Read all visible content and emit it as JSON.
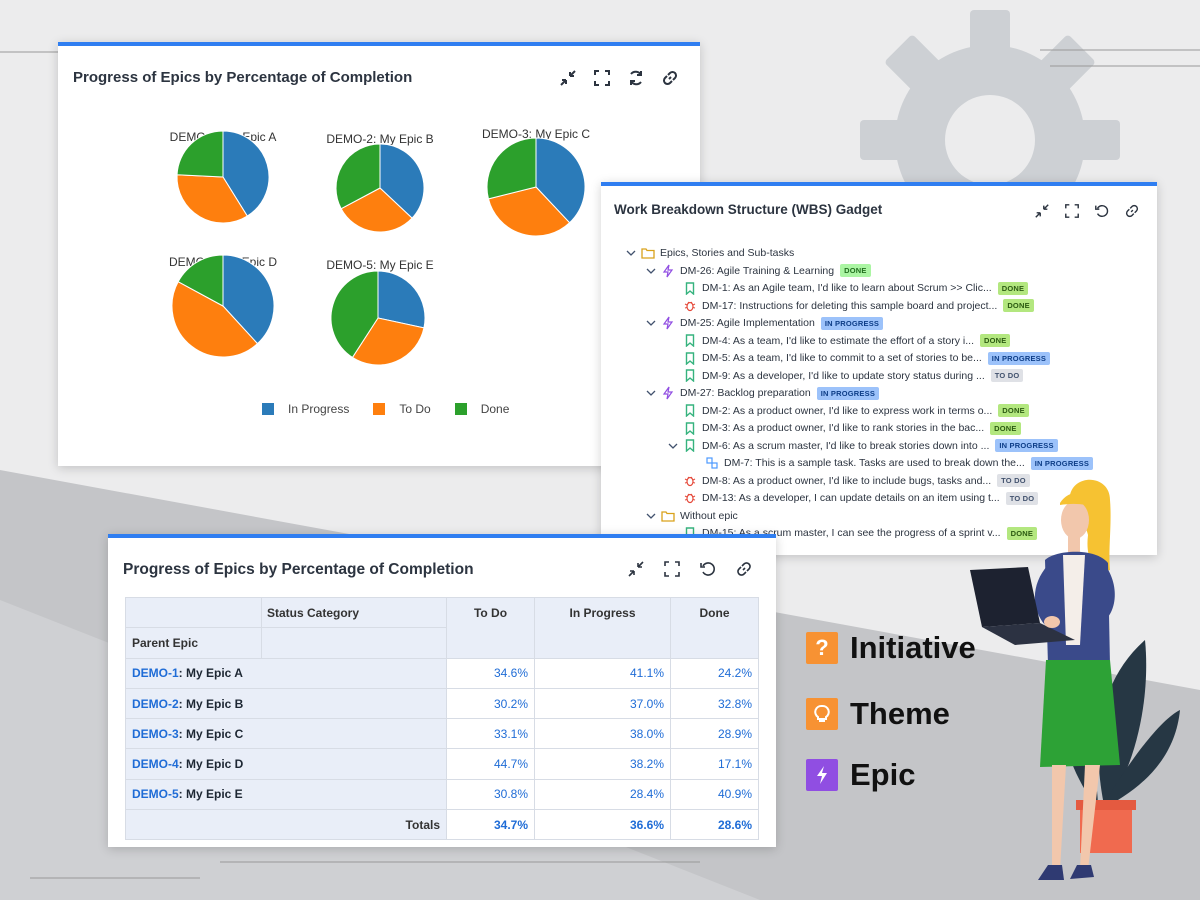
{
  "colors": {
    "in_progress": "#2b7bb9",
    "to_do": "#fe7f0e",
    "done": "#2ca02c",
    "accent": "#2f7ef1",
    "initiative": "#f79233",
    "theme": "#f79233",
    "epic": "#904ee2"
  },
  "pie_panel": {
    "title": "Progress of Epics by Percentage of Completion",
    "toolbar": [
      "minimize-icon",
      "fullscreen-icon",
      "refresh-icon",
      "link-icon"
    ],
    "legend": [
      "In Progress",
      "To Do",
      "Done"
    ]
  },
  "chart_data": {
    "type": "pie",
    "pies": [
      {
        "label": "DEMO-1: My Epic A",
        "in_progress": 41.1,
        "to_do": 34.6,
        "done": 24.2
      },
      {
        "label": "DEMO-2: My Epic B",
        "in_progress": 37.0,
        "to_do": 30.2,
        "done": 32.8
      },
      {
        "label": "DEMO-3: My Epic C",
        "in_progress": 38.0,
        "to_do": 33.1,
        "done": 28.9
      },
      {
        "label": "DEMO-4: My Epic D",
        "in_progress": 38.2,
        "to_do": 44.7,
        "done": 17.1
      },
      {
        "label": "DEMO-5: My Epic E",
        "in_progress": 28.4,
        "to_do": 30.8,
        "done": 40.9
      }
    ],
    "legend": [
      "In Progress",
      "To Do",
      "Done"
    ],
    "legend_position": "bottom"
  },
  "wbs": {
    "title": "Work Breakdown Structure (WBS) Gadget",
    "rows": [
      {
        "text": "Epics, Stories and Sub-tasks",
        "icon": "folder-icon",
        "badge": "",
        "badge_type": ""
      },
      {
        "text": "DM-26: Agile Training & Learning",
        "icon": "epic-icon",
        "badge": "DONE",
        "badge_type": "done"
      },
      {
        "text": "DM-1: As an Agile team, I'd like to learn about Scrum >> Clic...",
        "icon": "story-icon",
        "badge": "DONE",
        "badge_type": "done2"
      },
      {
        "text": "DM-17: Instructions for deleting this sample board and project...",
        "icon": "bug-icon",
        "badge": "DONE",
        "badge_type": "done2"
      },
      {
        "text": "DM-25: Agile Implementation",
        "icon": "epic-icon",
        "badge": "IN PROGRESS",
        "badge_type": "prog"
      },
      {
        "text": "DM-4: As a team, I'd like to estimate the effort of a story i...",
        "icon": "story-icon",
        "badge": "DONE",
        "badge_type": "done2"
      },
      {
        "text": "DM-5: As a team, I'd like to commit to a set of stories to be...",
        "icon": "story-icon",
        "badge": "IN PROGRESS",
        "badge_type": "prog"
      },
      {
        "text": "DM-9: As a developer, I'd like to update story status during ...",
        "icon": "story-icon",
        "badge": "TO DO",
        "badge_type": "todo"
      },
      {
        "text": "DM-27: Backlog preparation",
        "icon": "epic-icon",
        "badge": "IN PROGRESS",
        "badge_type": "prog"
      },
      {
        "text": "DM-2: As a product owner, I'd like to express work in terms o...",
        "icon": "story-icon",
        "badge": "DONE",
        "badge_type": "done2"
      },
      {
        "text": "DM-3: As a product owner, I'd like to rank stories in the bac...",
        "icon": "story-icon",
        "badge": "DONE",
        "badge_type": "done2"
      },
      {
        "text": "DM-6: As a scrum master, I'd like to break stories down into ...",
        "icon": "story-icon",
        "badge": "IN PROGRESS",
        "badge_type": "prog"
      },
      {
        "text": "DM-7: This is a sample task. Tasks are used to break down the...",
        "icon": "subtask-icon",
        "badge": "IN PROGRESS",
        "badge_type": "prog"
      },
      {
        "text": "DM-8: As a product owner, I'd like to include bugs, tasks and...",
        "icon": "bug-icon",
        "badge": "TO DO",
        "badge_type": "todo"
      },
      {
        "text": "DM-13: As a developer, I can update details on an item using t...",
        "icon": "bug-icon",
        "badge": "TO DO",
        "badge_type": "todo"
      },
      {
        "text": "Without epic",
        "icon": "folder-icon",
        "badge": "",
        "badge_type": ""
      },
      {
        "text": "DM-15: As a scrum master, I can see the progress of a sprint v...",
        "icon": "story-icon",
        "badge": "DONE",
        "badge_type": "done2"
      }
    ]
  },
  "table_panel": {
    "title": "Progress of Epics by Percentage of Completion",
    "status_category": "Status Category",
    "parent_epic": "Parent Epic",
    "columns": [
      "To Do",
      "In Progress",
      "Done"
    ],
    "rows": [
      {
        "key": "DEMO-1",
        "name": ": My Epic A",
        "values": [
          "34.6%",
          "41.1%",
          "24.2%"
        ]
      },
      {
        "key": "DEMO-2",
        "name": ": My Epic B",
        "values": [
          "30.2%",
          "37.0%",
          "32.8%"
        ]
      },
      {
        "key": "DEMO-3",
        "name": ": My Epic C",
        "values": [
          "33.1%",
          "38.0%",
          "28.9%"
        ]
      },
      {
        "key": "DEMO-4",
        "name": ": My Epic D",
        "values": [
          "44.7%",
          "38.2%",
          "17.1%"
        ]
      },
      {
        "key": "DEMO-5",
        "name": ": My Epic E",
        "values": [
          "30.8%",
          "28.4%",
          "40.9%"
        ]
      }
    ],
    "totals_label": "Totals",
    "totals": [
      "34.7%",
      "36.6%",
      "28.6%"
    ]
  },
  "side_legend": [
    {
      "label": "Initiative",
      "icon": "question-icon"
    },
    {
      "label": "Theme",
      "icon": "lightbulb-icon"
    },
    {
      "label": "Epic",
      "icon": "lightning-icon"
    }
  ]
}
